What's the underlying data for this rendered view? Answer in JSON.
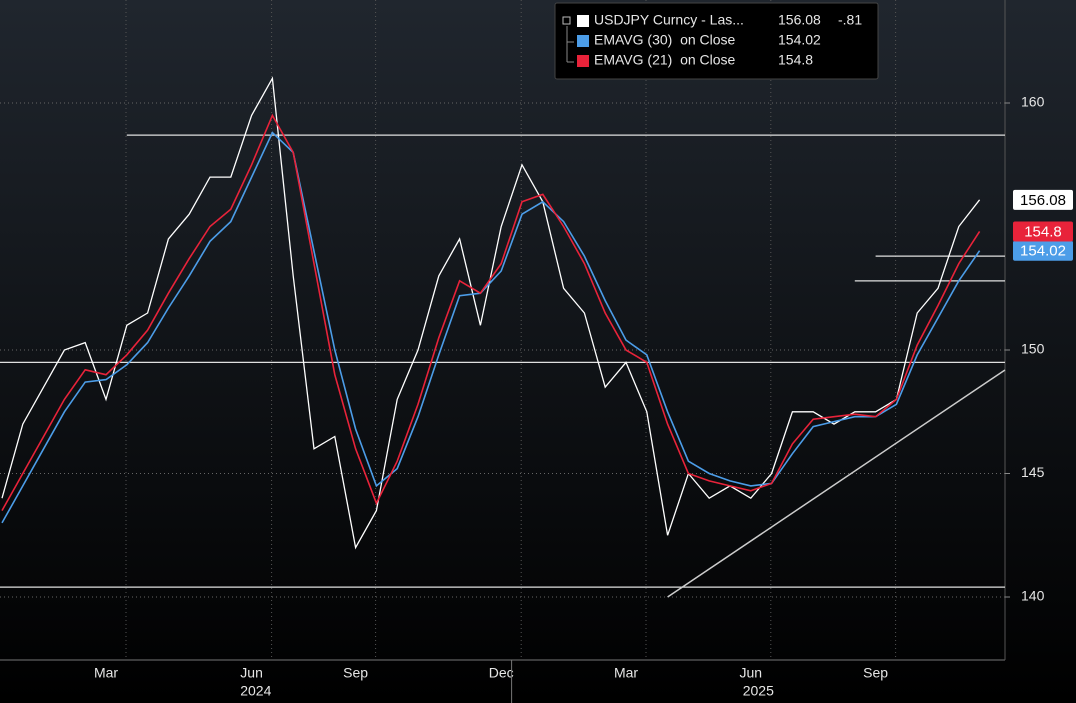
{
  "chart_data": {
    "type": "line",
    "categories": [
      null,
      null,
      null,
      null,
      null,
      "Mar",
      null,
      null,
      null,
      null,
      null,
      null,
      "Jun",
      null,
      null,
      null,
      null,
      "Sep",
      null,
      null,
      null,
      null,
      null,
      null,
      "Dec",
      null,
      null,
      null,
      null,
      null,
      "Mar",
      null,
      null,
      null,
      null,
      null,
      "Jun",
      null,
      null,
      null,
      null,
      null,
      "Sep",
      null,
      null,
      null,
      null,
      null
    ],
    "year_groups": [
      {
        "label": "2024",
        "count": 25
      },
      {
        "label": "2025",
        "count": 23
      }
    ],
    "series": [
      {
        "name": "USDJPY Curncy - Las...",
        "color": "#ffffff",
        "values": [
          144,
          147,
          148.5,
          150,
          150.3,
          148,
          151,
          151.5,
          154.5,
          155.5,
          157,
          157,
          159.5,
          161,
          153,
          146,
          146.5,
          142,
          143.5,
          148,
          150,
          153,
          154.5,
          151,
          155,
          157.5,
          156,
          152.5,
          151.5,
          148.5,
          149.5,
          147.5,
          142.5,
          145,
          144,
          144.5,
          144,
          145,
          147.5,
          147.5,
          147,
          147.5,
          147.5,
          148,
          151.5,
          152.5,
          155,
          156.08
        ],
        "change": {
          "value": -0.81,
          "label": "-.81"
        }
      },
      {
        "name": "EMAVG (30)  on Close",
        "color": "#4c9de8",
        "values": [
          143,
          144.5,
          146,
          147.5,
          148.7,
          148.8,
          149.4,
          150.3,
          151.7,
          153,
          154.4,
          155.2,
          157,
          158.8,
          158,
          154,
          150,
          146.8,
          144.5,
          145.2,
          147.3,
          149.8,
          152.2,
          152.3,
          153.2,
          155.5,
          156,
          155.2,
          153.8,
          152,
          150.4,
          149.8,
          147.5,
          145.5,
          145,
          144.7,
          144.5,
          144.6,
          145.8,
          146.9,
          147.1,
          147.3,
          147.3,
          147.8,
          149.8,
          151.3,
          152.8,
          154.02
        ]
      },
      {
        "name": "EMAVG (21)  on Close",
        "color": "#e8233a",
        "values": [
          143.5,
          145,
          146.5,
          148,
          149.2,
          149,
          149.8,
          150.8,
          152.3,
          153.7,
          155,
          155.7,
          157.5,
          159.5,
          158,
          153.5,
          149,
          146,
          143.8,
          145.5,
          147.8,
          150.5,
          152.8,
          152.3,
          153.5,
          156,
          156.3,
          155,
          153.5,
          151.5,
          150,
          149.5,
          147,
          145,
          144.7,
          144.5,
          144.3,
          144.6,
          146.2,
          147.2,
          147.3,
          147.4,
          147.3,
          148,
          150.2,
          151.8,
          153.5,
          154.8
        ]
      }
    ],
    "ylim": [
      137.45,
      164.17
    ],
    "yticks": [
      140,
      145,
      150,
      160
    ],
    "grid": true,
    "legend": "top",
    "hlines": [
      {
        "value": 158.7,
        "from": 6
      },
      {
        "value": 149.5,
        "from": 0
      },
      {
        "value": 140.4,
        "from": 0
      },
      {
        "value": 153.8,
        "from": 42
      },
      {
        "value": 152.8,
        "from": 41
      }
    ],
    "trendline": {
      "from": [
        32,
        140
      ],
      "to": [
        47,
        148.5
      ]
    }
  }
}
